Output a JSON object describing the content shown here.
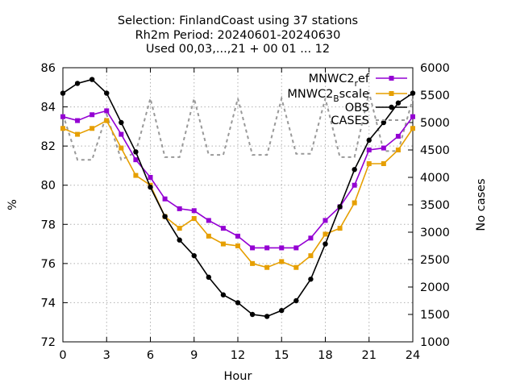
{
  "chart_data": {
    "type": "line",
    "title": [
      "Selection: FinlandCoast using    37 stations",
      "Rh2m   Period: 20240601-20240630",
      "Used 00,03,...,21 + 00 01 ... 12"
    ],
    "xlabel": "Hour",
    "ylabel": "%",
    "y2label": "No cases",
    "xlim": [
      0,
      24
    ],
    "ylim": [
      72,
      86
    ],
    "y2lim": [
      1000,
      6000
    ],
    "xticks": [
      0,
      3,
      6,
      9,
      12,
      15,
      18,
      21,
      24
    ],
    "yticks": [
      72,
      74,
      76,
      78,
      80,
      82,
      84,
      86
    ],
    "y2ticks": [
      1000,
      1500,
      2000,
      2500,
      3000,
      3500,
      4000,
      4500,
      5000,
      5500,
      6000
    ],
    "grid": true,
    "legend_position": "top-right",
    "x": [
      0,
      1,
      2,
      3,
      4,
      5,
      6,
      7,
      8,
      9,
      10,
      11,
      12,
      13,
      14,
      15,
      16,
      17,
      18,
      19,
      20,
      21,
      22,
      23,
      24
    ],
    "series": [
      {
        "name": "MNWC2_ref",
        "legend_main": "MNWC2",
        "legend_sub": "r",
        "legend_tail": "ef",
        "color": "#9400d3",
        "axis": "y1",
        "marker": "square",
        "values": [
          83.5,
          83.3,
          83.6,
          83.8,
          82.6,
          81.3,
          80.4,
          79.3,
          78.8,
          78.7,
          78.2,
          77.8,
          77.4,
          76.8,
          76.8,
          76.8,
          76.8,
          77.3,
          78.2,
          78.9,
          80.0,
          81.8,
          81.9,
          82.5,
          83.5
        ]
      },
      {
        "name": "MNWC2_Bscale",
        "legend_main": "MNWC2",
        "legend_sub": "B",
        "legend_tail": "scale",
        "color": "#e69f00",
        "axis": "y1",
        "marker": "square",
        "values": [
          82.9,
          82.6,
          82.9,
          83.3,
          81.9,
          80.5,
          80.0,
          78.4,
          77.8,
          78.3,
          77.4,
          77.0,
          76.9,
          76.0,
          75.8,
          76.1,
          75.8,
          76.4,
          77.5,
          77.8,
          79.1,
          81.1,
          81.1,
          81.8,
          82.9
        ]
      },
      {
        "name": "OBS",
        "color": "#000000",
        "axis": "y1",
        "marker": "circle",
        "values": [
          84.7,
          85.2,
          85.4,
          84.7,
          83.2,
          81.7,
          79.9,
          78.4,
          77.2,
          76.4,
          75.3,
          74.4,
          74.0,
          73.4,
          73.3,
          73.6,
          74.1,
          75.2,
          77.0,
          78.9,
          80.8,
          82.3,
          83.2,
          84.2,
          84.7
        ]
      },
      {
        "name": "CASES",
        "color": "#999999",
        "axis": "y2",
        "marker": "none",
        "dashed": true,
        "values": [
          5150,
          4320,
          4320,
          5150,
          4320,
          4460,
          5440,
          4370,
          4370,
          5440,
          4410,
          4410,
          5440,
          4410,
          4410,
          5440,
          4430,
          4430,
          5440,
          4370,
          4370,
          5550,
          4480,
          4480,
          5440
        ]
      }
    ]
  }
}
